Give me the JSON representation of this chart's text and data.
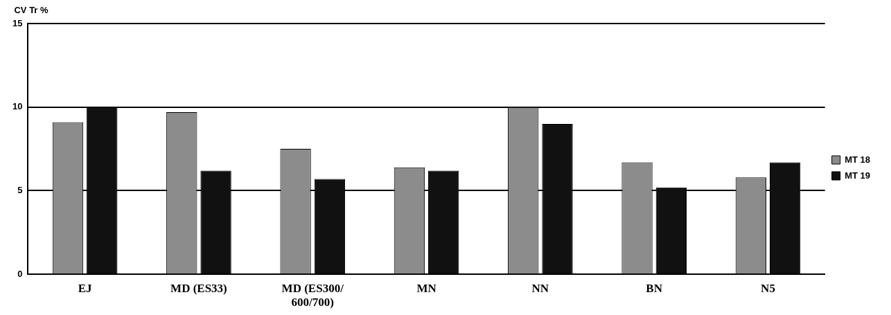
{
  "chart_data": {
    "type": "bar",
    "ylabel": "CV Tr %",
    "categories": [
      "EJ",
      "MD (ES33)",
      "MD (ES300/600/700)",
      "MN",
      "NN",
      "BN",
      "N5"
    ],
    "series": [
      {
        "name": "MT 18",
        "color": "#8c8c8c",
        "values": [
          9.1,
          9.7,
          7.5,
          6.4,
          10.0,
          6.7,
          5.8
        ]
      },
      {
        "name": "MT 19",
        "color": "#111111",
        "values": [
          10.0,
          6.2,
          5.7,
          6.2,
          9.0,
          5.2,
          6.7
        ]
      }
    ],
    "ylim": [
      0,
      15
    ],
    "yticks": [
      0,
      5,
      10,
      15
    ],
    "grid": "y",
    "legend": "right"
  }
}
